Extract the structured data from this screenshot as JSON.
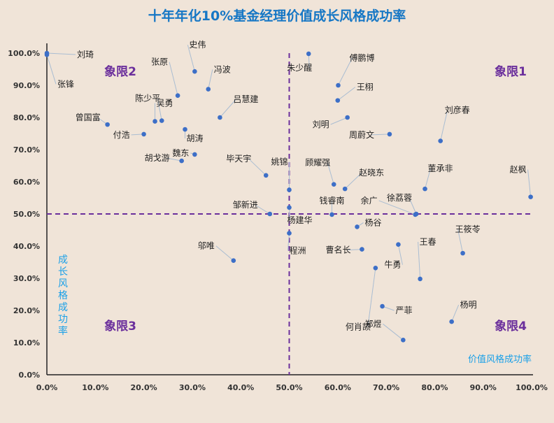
{
  "chart_data": {
    "type": "scatter",
    "title": "十年年化10%基金经理价值成长风格成功率",
    "xlabel": "价值风格成功率",
    "ylabel": "成长风格成功率",
    "xlim": [
      0,
      1
    ],
    "ylim": [
      0,
      1
    ],
    "x_ticks": [
      "0.0%",
      "10.0%",
      "20.0%",
      "30.0%",
      "40.0%",
      "50.0%",
      "60.0%",
      "70.0%",
      "80.0%",
      "90.0%",
      "100.0%"
    ],
    "y_ticks": [
      "0.0%",
      "10.0%",
      "20.0%",
      "30.0%",
      "40.0%",
      "50.0%",
      "60.0%",
      "70.0%",
      "80.0%",
      "90.0%",
      "100.0%"
    ],
    "reference_lines": {
      "x": 0.5,
      "y": 0.5
    },
    "quadrant_labels": [
      {
        "text": "象限1",
        "position": "top-right"
      },
      {
        "text": "象限2",
        "position": "top-left"
      },
      {
        "text": "象限3",
        "position": "bottom-left"
      },
      {
        "text": "象限4",
        "position": "bottom-right"
      }
    ],
    "grid": false,
    "points": [
      {
        "name": "刘琦",
        "x": 0.0,
        "y": 1.0
      },
      {
        "name": "张锋",
        "x": 0.0,
        "y": 0.995
      },
      {
        "name": "史伟",
        "x": 0.305,
        "y": 0.943
      },
      {
        "name": "张原",
        "x": 0.27,
        "y": 0.868
      },
      {
        "name": "冯波",
        "x": 0.333,
        "y": 0.888
      },
      {
        "name": "陈少平",
        "x": 0.237,
        "y": 0.79
      },
      {
        "name": "吴勇",
        "x": 0.223,
        "y": 0.788
      },
      {
        "name": "吕慧建",
        "x": 0.357,
        "y": 0.8
      },
      {
        "name": "曾国富",
        "x": 0.125,
        "y": 0.778
      },
      {
        "name": "胡涛",
        "x": 0.285,
        "y": 0.763
      },
      {
        "name": "付浩",
        "x": 0.2,
        "y": 0.748
      },
      {
        "name": "魏东",
        "x": 0.305,
        "y": 0.685
      },
      {
        "name": "胡戈游",
        "x": 0.278,
        "y": 0.665
      },
      {
        "name": "朱少醒",
        "x": 0.54,
        "y": 0.998
      },
      {
        "name": "傅鹏博",
        "x": 0.601,
        "y": 0.9
      },
      {
        "name": "王栩",
        "x": 0.6,
        "y": 0.853
      },
      {
        "name": "刘明",
        "x": 0.62,
        "y": 0.8
      },
      {
        "name": "周蔚文",
        "x": 0.707,
        "y": 0.748
      },
      {
        "name": "刘彦春",
        "x": 0.812,
        "y": 0.727
      },
      {
        "name": "赵枫",
        "x": 0.998,
        "y": 0.553
      },
      {
        "name": "毕天宇",
        "x": 0.452,
        "y": 0.62
      },
      {
        "name": "姚锦",
        "x": 0.5,
        "y": 0.575
      },
      {
        "name": "顾耀强",
        "x": 0.592,
        "y": 0.592
      },
      {
        "name": "赵晓东",
        "x": 0.615,
        "y": 0.578
      },
      {
        "name": "董承非",
        "x": 0.78,
        "y": 0.578
      },
      {
        "name": "钱睿南",
        "x": 0.588,
        "y": 0.498
      },
      {
        "name": "余广",
        "x": 0.76,
        "y": 0.498
      },
      {
        "name": "徐荔蓉",
        "x": 0.762,
        "y": 0.5
      },
      {
        "name": "邹新进",
        "x": 0.46,
        "y": 0.5
      },
      {
        "name": "杨建华",
        "x": 0.5,
        "y": 0.52
      },
      {
        "name": "杨谷",
        "x": 0.64,
        "y": 0.46
      },
      {
        "name": "曹名长",
        "x": 0.65,
        "y": 0.39
      },
      {
        "name": "程洲",
        "x": 0.5,
        "y": 0.44
      },
      {
        "name": "牛勇",
        "x": 0.725,
        "y": 0.405
      },
      {
        "name": "王筱苓",
        "x": 0.858,
        "y": 0.378
      },
      {
        "name": "王春",
        "x": 0.77,
        "y": 0.298
      },
      {
        "name": "何肖颉",
        "x": 0.678,
        "y": 0.332
      },
      {
        "name": "邬唯",
        "x": 0.385,
        "y": 0.355
      },
      {
        "name": "严菲",
        "x": 0.692,
        "y": 0.213
      },
      {
        "name": "杨明",
        "x": 0.835,
        "y": 0.165
      },
      {
        "name": "郑煜",
        "x": 0.735,
        "y": 0.108
      }
    ]
  },
  "colors": {
    "background": "#f0e4d8",
    "title": "#1677c5",
    "axis_label": "#1aa0e8",
    "quadrant_label": "#6b2f9c",
    "reference_line": "#6b2f9c",
    "marker": "#3d6fc7",
    "leader_line": "#aabdd2"
  }
}
